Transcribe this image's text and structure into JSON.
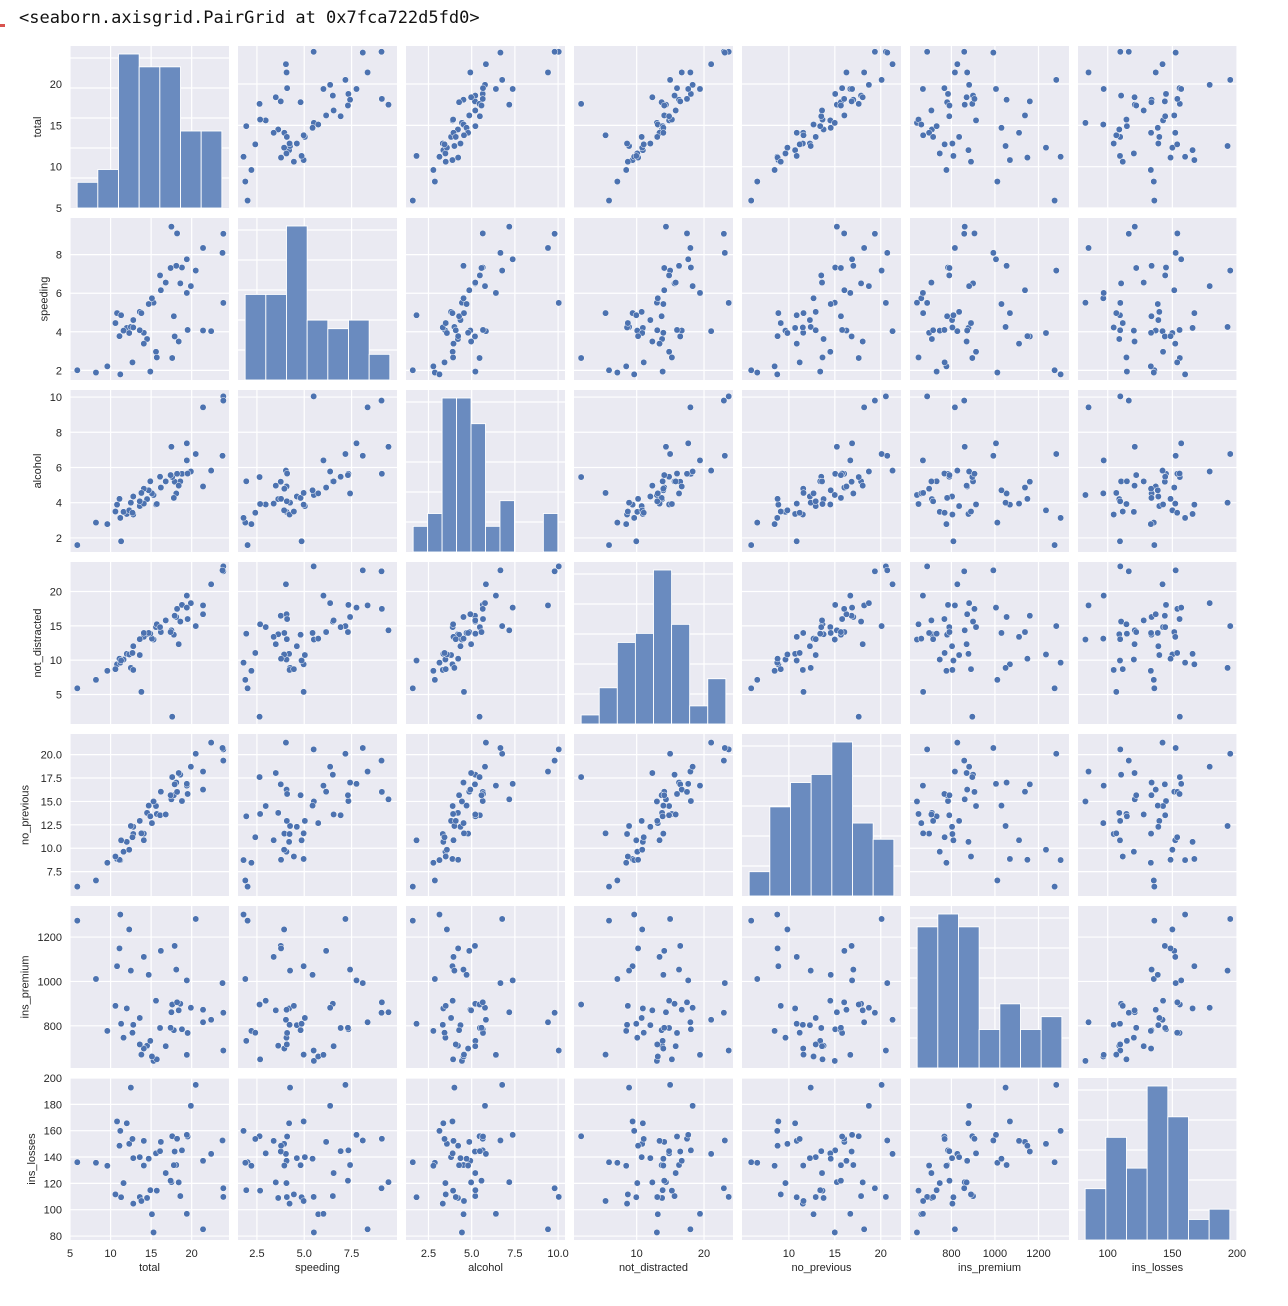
{
  "output": {
    "repr_text": "<seaborn.axisgrid.PairGrid at 0x7fca722d5fd0>"
  },
  "style": {
    "panel_bg": "#eaeaf2",
    "grid": "#ffffff",
    "point": "#4c72b0",
    "bar": "#6a8bbf",
    "text": "#262626"
  },
  "chart_data": {
    "type": "pairplot",
    "title": "",
    "variables": [
      "total",
      "speeding",
      "alcohol",
      "not_distracted",
      "no_previous",
      "ins_premium",
      "ins_losses"
    ],
    "axes": {
      "total": {
        "range": [
          5,
          24.6
        ],
        "ticks": [
          5,
          10,
          15,
          20
        ],
        "tick_labels": [
          "5",
          "10",
          "15",
          "20"
        ]
      },
      "speeding": {
        "range": [
          1.5,
          9.9
        ],
        "ticks": [
          2.5,
          5.0,
          7.5
        ],
        "tick_labels": [
          "2.5",
          "5.0",
          "7.5"
        ],
        "y_ticks": [
          2,
          4,
          6,
          8
        ],
        "y_tick_labels": [
          "2",
          "4",
          "6",
          "8"
        ]
      },
      "alcohol": {
        "range": [
          1.2,
          10.4
        ],
        "ticks": [
          2.5,
          5.0,
          7.5,
          10.0
        ],
        "tick_labels": [
          "2.5",
          "5.0",
          "7.5",
          "10.0"
        ],
        "y_ticks": [
          2,
          4,
          6,
          8,
          10
        ],
        "y_tick_labels": [
          "2",
          "4",
          "6",
          "8",
          "10"
        ]
      },
      "not_distracted": {
        "range": [
          0.7,
          24.3
        ],
        "ticks": [
          10,
          20
        ],
        "tick_labels": [
          "10",
          "20"
        ],
        "y_ticks": [
          5,
          10,
          15,
          20
        ],
        "y_tick_labels": [
          "5",
          "10",
          "15",
          "20"
        ]
      },
      "no_previous": {
        "range": [
          4.9,
          22.2
        ],
        "ticks": [
          10,
          15,
          20
        ],
        "tick_labels": [
          "10",
          "15",
          "20"
        ],
        "y_ticks": [
          7.5,
          10.0,
          12.5,
          15.0,
          17.5,
          20.0
        ],
        "y_tick_labels": [
          "7.5",
          "10.0",
          "12.5",
          "15.0",
          "17.5",
          "20.0"
        ]
      },
      "ins_premium": {
        "range": [
          610,
          1340
        ],
        "ticks": [
          800,
          1000,
          1200
        ],
        "tick_labels": [
          "800",
          "1000",
          "1200"
        ],
        "y_ticks": [
          800,
          1000,
          1200
        ],
        "y_tick_labels": [
          "800",
          "1000",
          "1200"
        ]
      },
      "ins_losses": {
        "range": [
          77,
          200
        ],
        "ticks": [
          100,
          150,
          200
        ],
        "tick_labels": [
          "100",
          "150",
          "200"
        ],
        "y_ticks": [
          80,
          100,
          120,
          140,
          160,
          180,
          200
        ],
        "y_tick_labels": [
          "80",
          "100",
          "120",
          "140",
          "160",
          "180",
          "200"
        ]
      }
    },
    "histograms": {
      "total": {
        "counts": [
          2,
          3,
          12,
          11,
          11,
          6,
          6
        ],
        "bins": 7
      },
      "speeding": {
        "counts": [
          10,
          10,
          18,
          7,
          6,
          7,
          3
        ],
        "bins": 7
      },
      "alcohol": {
        "counts": [
          2,
          3,
          12,
          12,
          10,
          2,
          4,
          0,
          0,
          3
        ],
        "bins": 10
      },
      "not_distracted": {
        "counts": [
          1,
          4,
          9,
          10,
          17,
          11,
          2,
          5
        ],
        "bins": 8
      },
      "no_previous": {
        "counts": [
          3,
          11,
          14,
          15,
          19,
          9,
          7
        ],
        "bins": 7
      },
      "ins_premium": {
        "counts": [
          11,
          12,
          11,
          3,
          5,
          3,
          4
        ],
        "bins": 7
      },
      "ins_losses": {
        "counts": [
          5,
          10,
          7,
          15,
          12,
          2,
          3
        ],
        "bins": 7
      }
    },
    "rows": [
      [
        18.8,
        7.332,
        5.64,
        18.048,
        15.04,
        784.55,
        145.08
      ],
      [
        18.1,
        7.421,
        4.525,
        16.29,
        17.014,
        1053.48,
        133.93
      ],
      [
        18.6,
        6.51,
        5.208,
        15.624,
        17.856,
        899.47,
        110.35
      ],
      [
        22.4,
        4.032,
        5.824,
        21.056,
        21.28,
        827.34,
        142.39
      ],
      [
        12.0,
        4.2,
        3.36,
        10.92,
        10.68,
        878.41,
        165.63
      ],
      [
        13.6,
        5.032,
        3.808,
        10.744,
        12.92,
        835.5,
        139.91
      ],
      [
        10.8,
        4.968,
        3.888,
        9.396,
        8.856,
        1068.73,
        167.02
      ],
      [
        16.2,
        6.156,
        4.86,
        14.094,
        16.038,
        1137.87,
        151.48
      ],
      [
        5.9,
        2.006,
        1.593,
        5.9,
        5.9,
        1273.89,
        136.05
      ],
      [
        17.9,
        3.759,
        5.191,
        16.468,
        16.826,
        1160.13,
        144.18
      ],
      [
        15.6,
        2.964,
        3.9,
        14.82,
        14.508,
        913.15,
        142.8
      ],
      [
        17.5,
        9.45,
        7.175,
        14.35,
        15.225,
        861.18,
        120.92
      ],
      [
        15.3,
        5.508,
        4.437,
        13.005,
        14.994,
        641.96,
        82.75
      ],
      [
        12.8,
        4.608,
        4.352,
        12.032,
        12.288,
        803.11,
        139.15
      ],
      [
        14.5,
        3.625,
        4.205,
        13.775,
        13.775,
        710.46,
        108.92
      ],
      [
        15.7,
        2.669,
        3.925,
        15.229,
        13.659,
        649.06,
        114.47
      ],
      [
        17.8,
        4.806,
        4.272,
        13.706,
        15.664,
        780.45,
        133.8
      ],
      [
        21.4,
        4.066,
        4.922,
        16.692,
        16.264,
        872.51,
        137.13
      ],
      [
        20.5,
        7.175,
        6.765,
        14.965,
        20.09,
        1281.55,
        194.78
      ],
      [
        15.1,
        5.738,
        4.53,
        13.137,
        12.684,
        661.88,
        96.57
      ],
      [
        12.5,
        4.25,
        4.0,
        8.875,
        12.375,
        1048.78,
        192.7
      ],
      [
        8.2,
        1.886,
        2.87,
        7.134,
        6.56,
        1011.14,
        135.63
      ],
      [
        14.1,
        3.384,
        3.948,
        13.395,
        10.857,
        1110.61,
        152.26
      ],
      [
        9.6,
        2.208,
        2.784,
        8.448,
        8.448,
        777.18,
        133.35
      ],
      [
        17.6,
        2.64,
        5.456,
        1.76,
        17.6,
        896.07,
        155.77
      ],
      [
        16.1,
        6.923,
        5.474,
        14.812,
        13.524,
        790.32,
        144.45
      ],
      [
        21.4,
        8.346,
        9.416,
        17.976,
        18.19,
        816.21,
        85.15
      ],
      [
        14.9,
        1.937,
        5.215,
        13.857,
        13.41,
        732.28,
        114.82
      ],
      [
        14.7,
        5.439,
        4.704,
        13.965,
        14.553,
        1029.87,
        138.71
      ],
      [
        11.6,
        4.06,
        3.48,
        10.092,
        9.628,
        746.54,
        120.21
      ],
      [
        11.2,
        1.792,
        3.136,
        9.632,
        8.736,
        1301.52,
        159.85
      ],
      [
        18.4,
        3.496,
        4.968,
        12.328,
        18.032,
        869.85,
        120.75
      ],
      [
        12.3,
        3.936,
        3.567,
        10.824,
        9.84,
        1234.31,
        150.01
      ],
      [
        16.8,
        6.552,
        5.208,
        15.792,
        13.608,
        708.24,
        127.82
      ],
      [
        23.9,
        5.497,
        10.038,
        23.661,
        20.554,
        688.75,
        109.72
      ],
      [
        14.1,
        3.948,
        4.794,
        13.959,
        11.562,
        697.73,
        133.52
      ],
      [
        19.9,
        6.368,
        5.771,
        18.308,
        18.706,
        881.51,
        178.86
      ],
      [
        12.8,
        4.224,
        3.328,
        8.576,
        11.52,
        804.71,
        104.61
      ],
      [
        18.2,
        9.1,
        5.642,
        17.472,
        16.016,
        905.99,
        153.86
      ],
      [
        11.1,
        3.774,
        4.218,
        10.212,
        8.769,
        1148.99,
        148.58
      ],
      [
        23.9,
        9.082,
        9.799,
        22.944,
        19.359,
        858.97,
        116.29
      ],
      [
        19.4,
        6.014,
        6.402,
        19.4,
        16.684,
        669.31,
        96.87
      ],
      [
        19.5,
        4.095,
        5.655,
        15.99,
        15.795,
        767.91,
        155.57
      ],
      [
        19.4,
        7.76,
        7.372,
        17.654,
        16.878,
        1004.75,
        156.83
      ],
      [
        11.3,
        4.859,
        1.808,
        9.944,
        10.848,
        809.38,
        109.48
      ],
      [
        13.6,
        4.08,
        4.08,
        13.056,
        12.92,
        716.2,
        109.61
      ],
      [
        12.7,
        2.413,
        3.429,
        11.049,
        11.176,
        768.95,
        153.72
      ],
      [
        10.6,
        4.452,
        3.498,
        8.692,
        9.116,
        890.03,
        111.62
      ],
      [
        23.8,
        8.092,
        6.664,
        23.086,
        20.706,
        992.61,
        152.56
      ],
      [
        13.8,
        4.968,
        4.554,
        5.382,
        11.592,
        670.31,
        106.62
      ],
      [
        17.4,
        7.308,
        5.568,
        14.094,
        15.66,
        791.14,
        122.04
      ]
    ],
    "grid": true,
    "legend": null
  }
}
